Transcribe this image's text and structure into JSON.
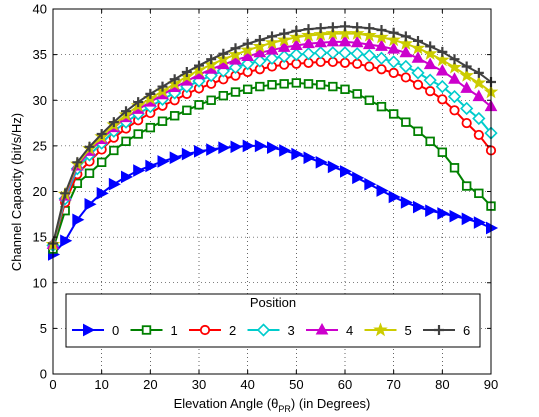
{
  "chart_data": {
    "type": "line",
    "xlabel_parts": {
      "main": "Elevation Angle (θ",
      "sub": "PR",
      "tail": ") (in Degrees)"
    },
    "ylabel": "Channel Capacity (bit/s/Hz)",
    "xlim": [
      0,
      90
    ],
    "ylim": [
      0,
      40
    ],
    "xticks": [
      "0",
      "10",
      "20",
      "30",
      "40",
      "50",
      "60",
      "70",
      "80",
      "90"
    ],
    "yticks": [
      "0",
      "5",
      "10",
      "15",
      "20",
      "25",
      "30",
      "35",
      "40"
    ],
    "grid": true,
    "legend": {
      "title": "Position",
      "placement": "bottom-center"
    },
    "x": [
      0,
      2.5,
      5,
      7.5,
      10,
      12.5,
      15,
      17.5,
      20,
      22.5,
      25,
      27.5,
      30,
      32.5,
      35,
      37.5,
      40,
      42.5,
      45,
      47.5,
      50,
      52.5,
      55,
      57.5,
      60,
      62.5,
      65,
      67.5,
      70,
      72.5,
      75,
      77.5,
      80,
      82.5,
      85,
      87.5,
      90
    ],
    "series": [
      {
        "name": "0",
        "color": "#0000ff",
        "marker": "triangle-right",
        "values": [
          13.1,
          14.6,
          16.9,
          18.6,
          19.8,
          20.8,
          21.6,
          22.3,
          22.8,
          23.3,
          23.7,
          24.1,
          24.4,
          24.6,
          24.8,
          24.9,
          25.0,
          25.0,
          24.8,
          24.5,
          24.1,
          23.7,
          23.2,
          22.7,
          22.2,
          21.5,
          20.8,
          20.1,
          19.4,
          18.8,
          18.3,
          17.9,
          17.6,
          17.3,
          17.0,
          16.6,
          16.0
        ]
      },
      {
        "name": "1",
        "color": "#008000",
        "marker": "square",
        "values": [
          13.7,
          17.9,
          20.9,
          22.0,
          23.2,
          24.5,
          25.5,
          26.3,
          27.0,
          27.7,
          28.3,
          28.9,
          29.5,
          30.0,
          30.5,
          30.9,
          31.2,
          31.5,
          31.7,
          31.8,
          31.9,
          31.8,
          31.7,
          31.5,
          31.2,
          30.7,
          30.0,
          29.3,
          28.5,
          27.6,
          26.6,
          25.5,
          24.3,
          22.6,
          20.6,
          19.8,
          18.4
        ]
      },
      {
        "name": "2",
        "color": "#ff0000",
        "marker": "circle",
        "values": [
          14.1,
          18.8,
          21.9,
          23.3,
          24.6,
          25.9,
          26.9,
          27.8,
          28.6,
          29.4,
          30.0,
          30.7,
          31.3,
          31.8,
          32.3,
          32.7,
          33.1,
          33.4,
          33.7,
          33.9,
          34.0,
          34.1,
          34.2,
          34.2,
          34.1,
          34.0,
          33.7,
          33.4,
          33.0,
          32.5,
          31.7,
          31.0,
          30.1,
          28.9,
          27.5,
          26.2,
          24.5
        ]
      },
      {
        "name": "3",
        "color": "#00cccc",
        "marker": "diamond",
        "values": [
          14.1,
          19.2,
          22.5,
          24.0,
          25.3,
          26.6,
          27.6,
          28.5,
          29.3,
          30.1,
          30.8,
          31.5,
          32.1,
          32.7,
          33.2,
          33.6,
          34.0,
          34.3,
          34.6,
          34.8,
          35.0,
          35.1,
          35.2,
          35.2,
          35.2,
          35.1,
          34.9,
          34.6,
          34.2,
          33.7,
          33.0,
          32.2,
          31.5,
          30.4,
          29.1,
          28.0,
          26.4
        ]
      },
      {
        "name": "4",
        "color": "#cc00cc",
        "marker": "triangle-up",
        "values": [
          14.2,
          19.5,
          22.8,
          24.4,
          25.7,
          27.0,
          28.1,
          29.0,
          29.8,
          30.6,
          31.4,
          32.1,
          32.8,
          33.4,
          33.9,
          34.4,
          34.8,
          35.2,
          35.5,
          35.8,
          36.0,
          36.2,
          36.3,
          36.4,
          36.4,
          36.3,
          36.1,
          35.9,
          35.6,
          35.2,
          34.6,
          33.9,
          33.2,
          32.3,
          31.3,
          30.4,
          29.3
        ]
      },
      {
        "name": "5",
        "color": "#cccc00",
        "marker": "star",
        "values": [
          14.2,
          19.7,
          23.0,
          24.7,
          26.0,
          27.3,
          28.4,
          29.4,
          30.2,
          31.0,
          31.8,
          32.6,
          33.3,
          33.9,
          34.5,
          35.0,
          35.5,
          35.9,
          36.3,
          36.6,
          36.9,
          37.1,
          37.2,
          37.3,
          37.3,
          37.3,
          37.1,
          36.9,
          36.6,
          36.2,
          35.7,
          35.1,
          34.4,
          33.6,
          32.7,
          31.9,
          30.9
        ]
      },
      {
        "name": "6",
        "color": "#404040",
        "marker": "plus",
        "values": [
          14.3,
          19.8,
          23.2,
          24.9,
          26.3,
          27.6,
          28.8,
          29.8,
          30.7,
          31.5,
          32.3,
          33.1,
          33.8,
          34.5,
          35.1,
          35.7,
          36.2,
          36.6,
          37.0,
          37.3,
          37.6,
          37.8,
          37.9,
          38.0,
          38.1,
          38.0,
          37.9,
          37.7,
          37.4,
          37.0,
          36.5,
          35.9,
          35.3,
          34.5,
          33.7,
          33.0,
          32.0
        ]
      }
    ]
  }
}
